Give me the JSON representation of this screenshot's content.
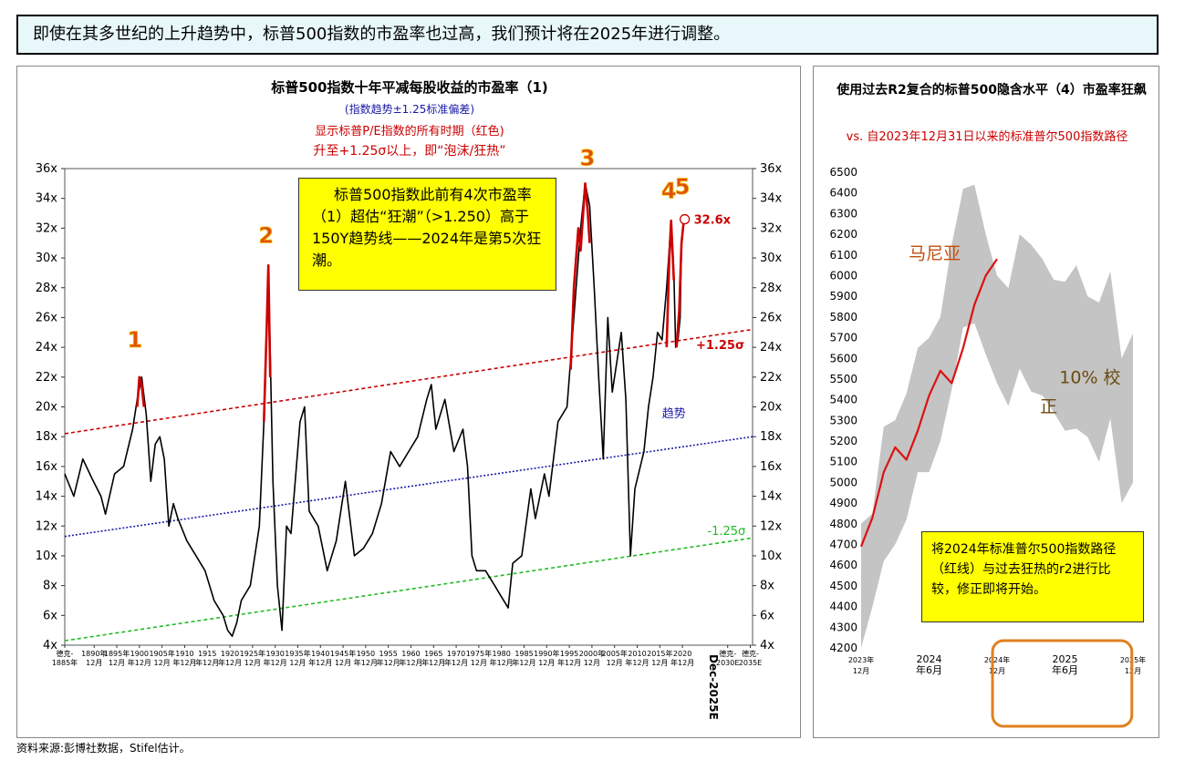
{
  "headline": "即使在其多世纪的上升趋势中，标普500指数的市盈率也过高，我们预计将在2025年进行调整。",
  "source": "资料来源:彭博社数据，Stifel估计。",
  "colors": {
    "red": "#cc0000",
    "trend_blue": "#1a1aa6",
    "green": "#22bb22",
    "note_bg": "#ffff00"
  },
  "chart_data": [
    {
      "type": "line",
      "title": "标普500指数十年平减每股收益的市盈率（1)",
      "subtitle_lines": [
        "(指数趋势±1.25标准偏差)",
        "显示标普P/E指数的所有时期（红色)",
        "升至+1.25σ以上，即“泡沫/狂热”"
      ],
      "y_ticks": [
        "4x",
        "6x",
        "8x",
        "10x",
        "12x",
        "14x",
        "16x",
        "18x",
        "20x",
        "22x",
        "24x",
        "26x",
        "28x",
        "30x",
        "32x",
        "34x",
        "36x"
      ],
      "ylim": [
        4,
        36
      ],
      "x_ticks": [
        {
          "t": "德克-",
          "t2": "1885年",
          "x": 1884.0
        },
        {
          "t": "1890年",
          "t2": "12月",
          "x": 1890.5
        },
        {
          "t": "1895年",
          "t2": "12月",
          "x": 1895.5
        },
        {
          "t": "1900",
          "t2": "年12月",
          "x": 1900.5
        },
        {
          "t": "1905年",
          "t2": "12月",
          "x": 1905.5
        },
        {
          "t": "1910",
          "t2": "年12月",
          "x": 1910.5
        },
        {
          "t": "1915",
          "t2": "年12月",
          "x": 1915.5
        },
        {
          "t": "1920",
          "t2": "年12月",
          "x": 1920.5
        },
        {
          "t": "1925年",
          "t2": "12月",
          "x": 1925.5
        },
        {
          "t": "1930",
          "t2": "年12月",
          "x": 1930.5
        },
        {
          "t": "1935年",
          "t2": "12月",
          "x": 1935.5
        },
        {
          "t": "1940",
          "t2": "年12月",
          "x": 1940.5
        },
        {
          "t": "1945年",
          "t2": "12月",
          "x": 1945.5
        },
        {
          "t": "1950",
          "t2": "年12月",
          "x": 1950.5
        },
        {
          "t": "1955",
          "t2": "年12月",
          "x": 1955.5
        },
        {
          "t": "1960",
          "t2": "年12月",
          "x": 1960.5
        },
        {
          "t": "1965",
          "t2": "年12月",
          "x": 1965.5
        },
        {
          "t": "1970",
          "t2": "年12月",
          "x": 1970.5
        },
        {
          "t": "1975年",
          "t2": "12月",
          "x": 1975.5
        },
        {
          "t": "1980",
          "t2": "年12月",
          "x": 1980.5
        },
        {
          "t": "1985",
          "t2": "年12月",
          "x": 1985.5
        },
        {
          "t": "1990年",
          "t2": "12月",
          "x": 1990.5
        },
        {
          "t": "1995",
          "t2": "年12月",
          "x": 1995.5
        },
        {
          "t": "2000年",
          "t2": "12月",
          "x": 2000.5
        },
        {
          "t": "2005年",
          "t2": "12月",
          "x": 2005.5
        },
        {
          "t": "2010",
          "t2": "年12月",
          "x": 2010.5
        },
        {
          "t": "2015年",
          "t2": "12月",
          "x": 2015.5
        },
        {
          "t": "2020",
          "t2": "年12月",
          "x": 2020.5
        },
        {
          "t": "德克-",
          "t2": "2030E",
          "x": 2030.5
        },
        {
          "t": "德克-",
          "t2": "2035E",
          "x": 2035.5
        }
      ],
      "dec_label": "Dec-2025E",
      "xlim": [
        1884,
        2036
      ],
      "series": [
        {
          "key": "pe",
          "color": "#000000",
          "points": [
            [
              1884,
              15.5
            ],
            [
              1886,
              14.0
            ],
            [
              1888,
              16.5
            ],
            [
              1890,
              15.2
            ],
            [
              1892,
              14.0
            ],
            [
              1893,
              12.8
            ],
            [
              1895,
              15.5
            ],
            [
              1897,
              16.0
            ],
            [
              1899,
              18.5
            ],
            [
              1900,
              20.5
            ],
            [
              1901,
              22.0
            ],
            [
              1902,
              19.5
            ],
            [
              1903,
              15.0
            ],
            [
              1904,
              17.5
            ],
            [
              1905,
              18.0
            ],
            [
              1906,
              16.5
            ],
            [
              1907,
              12.0
            ],
            [
              1908,
              13.5
            ],
            [
              1909,
              12.5
            ],
            [
              1911,
              11.0
            ],
            [
              1913,
              10.0
            ],
            [
              1915,
              9.0
            ],
            [
              1917,
              7.0
            ],
            [
              1919,
              6.0
            ],
            [
              1920,
              5.0
            ],
            [
              1921,
              4.6
            ],
            [
              1922,
              5.5
            ],
            [
              1923,
              7.0
            ],
            [
              1925,
              8.0
            ],
            [
              1927,
              12.0
            ],
            [
              1928,
              19.0
            ],
            [
              1929,
              29.5
            ],
            [
              1930,
              15.0
            ],
            [
              1931,
              8.0
            ],
            [
              1932,
              5.0
            ],
            [
              1933,
              12.0
            ],
            [
              1934,
              11.5
            ],
            [
              1936,
              19.0
            ],
            [
              1937,
              20.0
            ],
            [
              1938,
              13.0
            ],
            [
              1940,
              12.0
            ],
            [
              1942,
              9.0
            ],
            [
              1944,
              11.0
            ],
            [
              1946,
              15.0
            ],
            [
              1948,
              10.0
            ],
            [
              1950,
              10.5
            ],
            [
              1952,
              11.5
            ],
            [
              1954,
              13.5
            ],
            [
              1956,
              17.0
            ],
            [
              1958,
              16.0
            ],
            [
              1960,
              17.0
            ],
            [
              1962,
              18.0
            ],
            [
              1964,
              20.5
            ],
            [
              1965,
              21.5
            ],
            [
              1966,
              18.5
            ],
            [
              1968,
              20.5
            ],
            [
              1970,
              17.0
            ],
            [
              1972,
              18.5
            ],
            [
              1973,
              16.0
            ],
            [
              1974,
              10.0
            ],
            [
              1975,
              9.0
            ],
            [
              1977,
              9.0
            ],
            [
              1979,
              8.0
            ],
            [
              1980,
              7.5
            ],
            [
              1982,
              6.5
            ],
            [
              1983,
              9.5
            ],
            [
              1985,
              10.0
            ],
            [
              1987,
              14.5
            ],
            [
              1988,
              12.5
            ],
            [
              1990,
              15.5
            ],
            [
              1991,
              14.0
            ],
            [
              1993,
              19.0
            ],
            [
              1995,
              20.0
            ],
            [
              1996,
              24.0
            ],
            [
              1998,
              32.0
            ],
            [
              1999,
              35.0
            ],
            [
              2000,
              33.5
            ],
            [
              2001,
              28.0
            ],
            [
              2002,
              22.0
            ],
            [
              2003,
              16.5
            ],
            [
              2004,
              26.0
            ],
            [
              2005,
              21.0
            ],
            [
              2007,
              25.0
            ],
            [
              2008,
              20.5
            ],
            [
              2009,
              10.0
            ],
            [
              2010,
              14.5
            ],
            [
              2012,
              17.0
            ],
            [
              2013,
              20.0
            ],
            [
              2014,
              22.0
            ],
            [
              2015,
              25.0
            ],
            [
              2016,
              24.5
            ],
            [
              2017,
              28.0
            ],
            [
              2018,
              32.5
            ],
            [
              2018.6,
              29.0
            ],
            [
              2019,
              24.0
            ],
            [
              2019.5,
              24.5
            ],
            [
              2020,
              26.0
            ],
            [
              2020.3,
              31.0
            ],
            [
              2020.8,
              32.5
            ]
          ]
        },
        {
          "key": "bubble",
          "color": "#cc0000",
          "segments": [
            [
              [
                1900,
                20.0
              ],
              [
                1900.5,
                22.0
              ],
              [
                1901,
                21.5
              ],
              [
                1901.5,
                20.0
              ]
            ],
            [
              [
                1928,
                19.0
              ],
              [
                1928.6,
                25.0
              ],
              [
                1929,
                29.5
              ],
              [
                1929.4,
                22.0
              ]
            ],
            [
              [
                1995.8,
                22.5
              ],
              [
                1996.5,
                28.0
              ],
              [
                1997.5,
                32.0
              ],
              [
                1998,
                30.5
              ],
              [
                1999,
                35.0
              ],
              [
                1999.6,
                33.0
              ],
              [
                2000,
                31.0
              ]
            ],
            [
              [
                2017.0,
                24.0
              ],
              [
                2017.6,
                30.0
              ],
              [
                2018.0,
                32.5
              ],
              [
                2018.6,
                28.5
              ]
            ],
            [
              [
                2019.2,
                24.0
              ],
              [
                2019.8,
                26.5
              ],
              [
                2020.3,
                31.0
              ],
              [
                2020.8,
                32.5
              ]
            ]
          ]
        }
      ],
      "lines": [
        {
          "name": "+1.25σ",
          "label": "+1.25σ",
          "color": "#cc0000",
          "dash": "4,3",
          "from": [
            1884,
            18.2
          ],
          "to": [
            2036,
            25.2
          ]
        },
        {
          "name": "趋势",
          "label": "趋势",
          "color": "#1a1aa6",
          "dash": "2,2",
          "from": [
            1884,
            11.3
          ],
          "to": [
            2036,
            18.0
          ]
        },
        {
          "name": "-1.25σ",
          "label": "-1.25σ",
          "color": "#22bb22",
          "dash": "4,3",
          "from": [
            1884,
            4.3
          ],
          "to": [
            2036,
            11.2
          ]
        }
      ],
      "markers": [
        {
          "n": "1",
          "x": 1899.5,
          "y": 24.0
        },
        {
          "n": "2",
          "x": 1928.5,
          "y": 31.0
        },
        {
          "n": "3",
          "x": 1999.5,
          "y": 36.2
        },
        {
          "n": "4",
          "x": 2017.5,
          "y": 34.0
        },
        {
          "n": "5",
          "x": 2020.5,
          "y": 34.3
        }
      ],
      "current": {
        "label": "32.6x",
        "x": 2021.0,
        "y": 32.6
      },
      "note": "标普500指数此前有4次市盈率（1）超估“狂潮”（>1.250）高于150Y趋势线——2024年是第5次狂潮。"
    },
    {
      "type": "area",
      "title": "使用过去R2复合的标普500隐含水平（4）市盈率狂飙",
      "subtitle": "vs. 自2023年12月31日以来的标准普尔500指数路径",
      "y_ticks": [
        "4200",
        "4300",
        "4400",
        "4500",
        "4600",
        "4700",
        "4800",
        "4900",
        "5000",
        "5100",
        "5200",
        "5300",
        "5400",
        "5500",
        "5600",
        "5700",
        "5800",
        "5900",
        "6000",
        "6100",
        "6200",
        "6300",
        "6400",
        "6500"
      ],
      "ylim": [
        4200,
        6500
      ],
      "xlim": [
        0,
        24
      ],
      "x_ticks": [
        {
          "t": "2023年",
          "t2": "12月",
          "x": 0
        },
        {
          "t": "2024",
          "t2": "年6月",
          "x": 6
        },
        {
          "t": "2024年",
          "t2": "12月",
          "x": 12
        },
        {
          "t": "2025",
          "t2": "年6月",
          "x": 18
        },
        {
          "t": "2025年",
          "t2": "12月",
          "x": 24
        }
      ],
      "band_upper": [
        [
          0,
          4800
        ],
        [
          1,
          4850
        ],
        [
          2,
          5270
        ],
        [
          3,
          5300
        ],
        [
          4,
          5430
        ],
        [
          5,
          5650
        ],
        [
          6,
          5700
        ],
        [
          7,
          5800
        ],
        [
          8,
          6150
        ],
        [
          9,
          6420
        ],
        [
          10,
          6440
        ],
        [
          11,
          6200
        ],
        [
          12,
          6000
        ],
        [
          13,
          5940
        ],
        [
          14,
          6200
        ],
        [
          15,
          6150
        ],
        [
          16,
          6080
        ],
        [
          17,
          5980
        ],
        [
          18,
          5970
        ],
        [
          19,
          6050
        ],
        [
          20,
          5900
        ],
        [
          21,
          5870
        ],
        [
          22,
          6020
        ],
        [
          23,
          5600
        ],
        [
          24,
          5720
        ]
      ],
      "band_lower": [
        [
          0,
          4200
        ],
        [
          1,
          4400
        ],
        [
          2,
          4620
        ],
        [
          3,
          4700
        ],
        [
          4,
          4820
        ],
        [
          5,
          5050
        ],
        [
          6,
          5050
        ],
        [
          7,
          5200
        ],
        [
          8,
          5450
        ],
        [
          9,
          5750
        ],
        [
          10,
          5770
        ],
        [
          11,
          5620
        ],
        [
          12,
          5480
        ],
        [
          13,
          5370
        ],
        [
          14,
          5550
        ],
        [
          15,
          5440
        ],
        [
          16,
          5420
        ],
        [
          17,
          5340
        ],
        [
          18,
          5250
        ],
        [
          19,
          5260
        ],
        [
          20,
          5220
        ],
        [
          21,
          5100
        ],
        [
          22,
          5310
        ],
        [
          23,
          4900
        ],
        [
          24,
          5000
        ]
      ],
      "sp500_path": [
        [
          0,
          4690
        ],
        [
          1,
          4830
        ],
        [
          2,
          5050
        ],
        [
          3,
          5170
        ],
        [
          4,
          5110
        ],
        [
          5,
          5250
        ],
        [
          6,
          5420
        ],
        [
          7,
          5540
        ],
        [
          8,
          5480
        ],
        [
          9,
          5650
        ],
        [
          10,
          5860
        ],
        [
          11,
          6000
        ],
        [
          12,
          6080
        ]
      ],
      "path_label": "马尼亚",
      "correction_label_1": "10% 校",
      "correction_label_2": "正",
      "note": "将2024年标准普尔500指数路径（红线）与过去狂热的r2进行比较，修正即将开始。"
    }
  ]
}
